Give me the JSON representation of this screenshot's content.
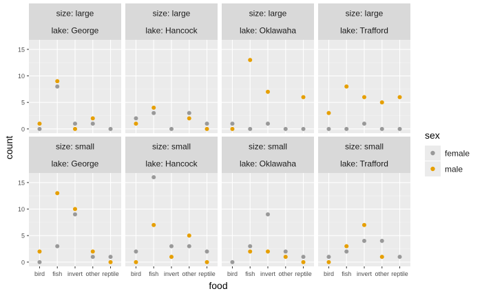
{
  "chart_data": {
    "type": "scatter",
    "xlabel": "food",
    "ylabel": "count",
    "categories": [
      "bird",
      "fish",
      "invert",
      "other",
      "reptile"
    ],
    "ylim": [
      -0.8,
      16.8
    ],
    "yticks": [
      0,
      5,
      10,
      15
    ],
    "grid": true,
    "legend": {
      "title": "sex",
      "placement": "right",
      "entries": [
        {
          "name": "female",
          "color": "#999999"
        },
        {
          "name": "male",
          "color": "#E69F00"
        }
      ]
    },
    "facets": [
      {
        "size_label": "size: large",
        "lake_label": "lake: George",
        "series": [
          {
            "name": "female",
            "values": [
              0,
              8,
              1,
              1,
              0
            ]
          },
          {
            "name": "male",
            "values": [
              1,
              9,
              0,
              2,
              null
            ]
          }
        ]
      },
      {
        "size_label": "size: large",
        "lake_label": "lake: Hancock",
        "series": [
          {
            "name": "female",
            "values": [
              2,
              3,
              0,
              3,
              1
            ]
          },
          {
            "name": "male",
            "values": [
              1,
              4,
              null,
              2,
              0
            ]
          }
        ]
      },
      {
        "size_label": "size: large",
        "lake_label": "lake: Oklawaha",
        "series": [
          {
            "name": "female",
            "values": [
              1,
              0,
              1,
              0,
              0
            ]
          },
          {
            "name": "male",
            "values": [
              0,
              13,
              7,
              null,
              6
            ]
          }
        ]
      },
      {
        "size_label": "size: large",
        "lake_label": "lake: Trafford",
        "series": [
          {
            "name": "female",
            "values": [
              0,
              0,
              1,
              0,
              0
            ]
          },
          {
            "name": "male",
            "values": [
              3,
              8,
              6,
              5,
              6
            ]
          }
        ]
      },
      {
        "size_label": "size: small",
        "lake_label": "lake: George",
        "series": [
          {
            "name": "female",
            "values": [
              0,
              3,
              9,
              1,
              1
            ]
          },
          {
            "name": "male",
            "values": [
              2,
              13,
              10,
              2,
              0
            ]
          }
        ]
      },
      {
        "size_label": "size: small",
        "lake_label": "lake: Hancock",
        "series": [
          {
            "name": "female",
            "values": [
              2,
              16,
              3,
              3,
              2
            ]
          },
          {
            "name": "male",
            "values": [
              0,
              7,
              1,
              5,
              0
            ]
          }
        ]
      },
      {
        "size_label": "size: small",
        "lake_label": "lake: Oklawaha",
        "series": [
          {
            "name": "female",
            "values": [
              0,
              3,
              9,
              2,
              1
            ]
          },
          {
            "name": "male",
            "values": [
              null,
              2,
              2,
              1,
              0
            ]
          }
        ]
      },
      {
        "size_label": "size: small",
        "lake_label": "lake: Trafford",
        "series": [
          {
            "name": "female",
            "values": [
              1,
              2,
              4,
              4,
              1
            ]
          },
          {
            "name": "male",
            "values": [
              0,
              3,
              7,
              1,
              null
            ]
          }
        ]
      }
    ]
  }
}
